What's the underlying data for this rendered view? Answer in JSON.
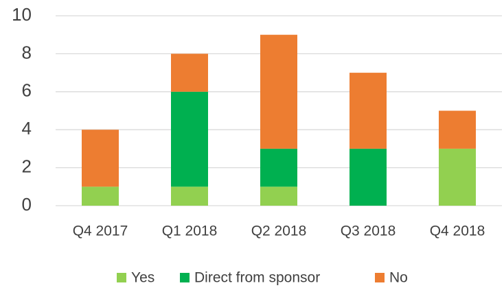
{
  "chart_data": {
    "type": "stacked_bar",
    "categories": [
      "Q4 2017",
      "Q1 2018",
      "Q2 2018",
      "Q3 2018",
      "Q4 2018"
    ],
    "series": [
      {
        "name": "Yes",
        "color": "#92d050",
        "values": [
          1,
          1,
          1,
          0,
          3
        ]
      },
      {
        "name": "Direct from sponsor",
        "color": "#00b050",
        "values": [
          0,
          5,
          2,
          3,
          0
        ]
      },
      {
        "name": "No",
        "color": "#ed7d31",
        "values": [
          3,
          2,
          6,
          4,
          2
        ]
      }
    ],
    "ylim": [
      0,
      10
    ],
    "yticks": [
      0,
      2,
      4,
      6,
      8,
      10
    ],
    "grid": true,
    "legend": "bottom"
  }
}
